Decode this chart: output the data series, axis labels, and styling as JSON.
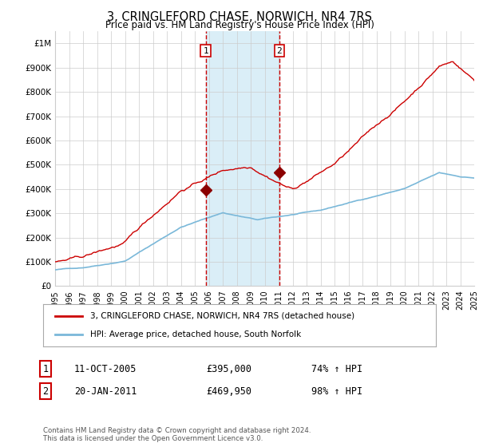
{
  "title": "3, CRINGLEFORD CHASE, NORWICH, NR4 7RS",
  "subtitle": "Price paid vs. HM Land Registry's House Price Index (HPI)",
  "x_start_year": 1995,
  "x_end_year": 2025,
  "y_ticks": [
    0,
    100000,
    200000,
    300000,
    400000,
    500000,
    600000,
    700000,
    800000,
    900000,
    1000000
  ],
  "y_tick_labels": [
    "£0",
    "£100K",
    "£200K",
    "£300K",
    "£400K",
    "£500K",
    "£600K",
    "£700K",
    "£800K",
    "£900K",
    "£1M"
  ],
  "sale1_date": 2005.78,
  "sale1_price": 395000,
  "sale1_label": "1",
  "sale1_text": "11-OCT-2005",
  "sale1_amount": "£395,000",
  "sale1_hpi": "74% ↑ HPI",
  "sale2_date": 2011.05,
  "sale2_price": 469950,
  "sale2_label": "2",
  "sale2_text": "20-JAN-2011",
  "sale2_amount": "£469,950",
  "sale2_hpi": "98% ↑ HPI",
  "hpi_line_color": "#7ab8d9",
  "price_line_color": "#cc0000",
  "shade_color": "#daeef7",
  "marker_color": "#8b0000",
  "vline_color": "#cc0000",
  "grid_color": "#cccccc",
  "background_color": "#ffffff",
  "legend1": "3, CRINGLEFORD CHASE, NORWICH, NR4 7RS (detached house)",
  "legend2": "HPI: Average price, detached house, South Norfolk",
  "footnote": "Contains HM Land Registry data © Crown copyright and database right 2024.\nThis data is licensed under the Open Government Licence v3.0."
}
